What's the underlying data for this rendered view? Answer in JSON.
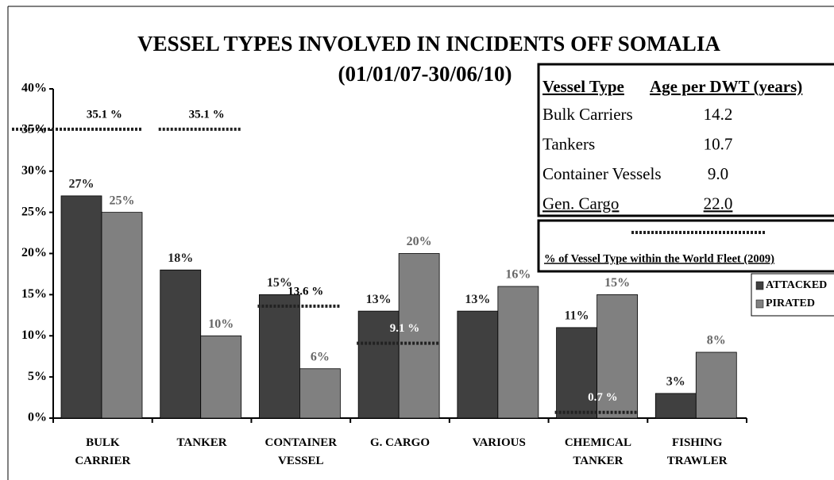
{
  "chart_data": {
    "type": "bar",
    "title": "VESSEL TYPES INVOLVED IN INCIDENTS OFF SOMALIA",
    "subtitle": "(01/01/07-30/06/10)",
    "categories": [
      "BULK\nCARRIER",
      "TANKER",
      "CONTAINER\nVESSEL",
      "G. CARGO",
      "VARIOUS",
      "CHEMICAL\nTANKER",
      "FISHING\nTRAWLER"
    ],
    "series": [
      {
        "name": "ATTACKED",
        "color": "#404040",
        "values": [
          27,
          18,
          15,
          13,
          13,
          11,
          3
        ],
        "value_labels": [
          "27%",
          "18%",
          "15%",
          "13%",
          "13%",
          "11%",
          "3%"
        ]
      },
      {
        "name": "PIRATED",
        "color": "#808080",
        "values": [
          25,
          10,
          6,
          20,
          16,
          15,
          8
        ],
        "value_labels": [
          "25%",
          "10%",
          "6%",
          "20%",
          "16%",
          "15%",
          "8%"
        ]
      }
    ],
    "reference": {
      "name": "% of Vessel Type within the World Fleet (2009)",
      "color": "#222222",
      "values": [
        35.1,
        35.1,
        13.6,
        9.1,
        null,
        0.7,
        null
      ],
      "value_labels": [
        "35.1 %",
        "35.1 %",
        "13.6 %",
        "9.1 %",
        null,
        "0.7 %",
        null
      ],
      "label_colors": [
        "#000000",
        "#000000",
        "#000000",
        "#ffffff",
        null,
        "#ffffff",
        null
      ]
    },
    "ylim": [
      0,
      40
    ],
    "yticks": [
      {
        "value": 0,
        "label": "0%"
      },
      {
        "value": 5,
        "label": "5%"
      },
      {
        "value": 10,
        "label": "10%"
      },
      {
        "value": 15,
        "label": "15%"
      },
      {
        "value": 20,
        "label": "20%"
      },
      {
        "value": 25,
        "label": "25%"
      },
      {
        "value": 30,
        "label": "30%"
      },
      {
        "value": 35,
        "label": "35%"
      },
      {
        "value": 40,
        "label": "40%"
      }
    ],
    "grid": false,
    "legend": "right",
    "table": {
      "header": [
        "Vessel Type",
        "Age per DWT (years)"
      ],
      "rows": [
        [
          "Bulk Carriers",
          "14.2"
        ],
        [
          "Tankers",
          "10.7"
        ],
        [
          "Container Vessels",
          "9.0"
        ],
        [
          "Gen. Cargo",
          "22.0"
        ]
      ]
    }
  }
}
